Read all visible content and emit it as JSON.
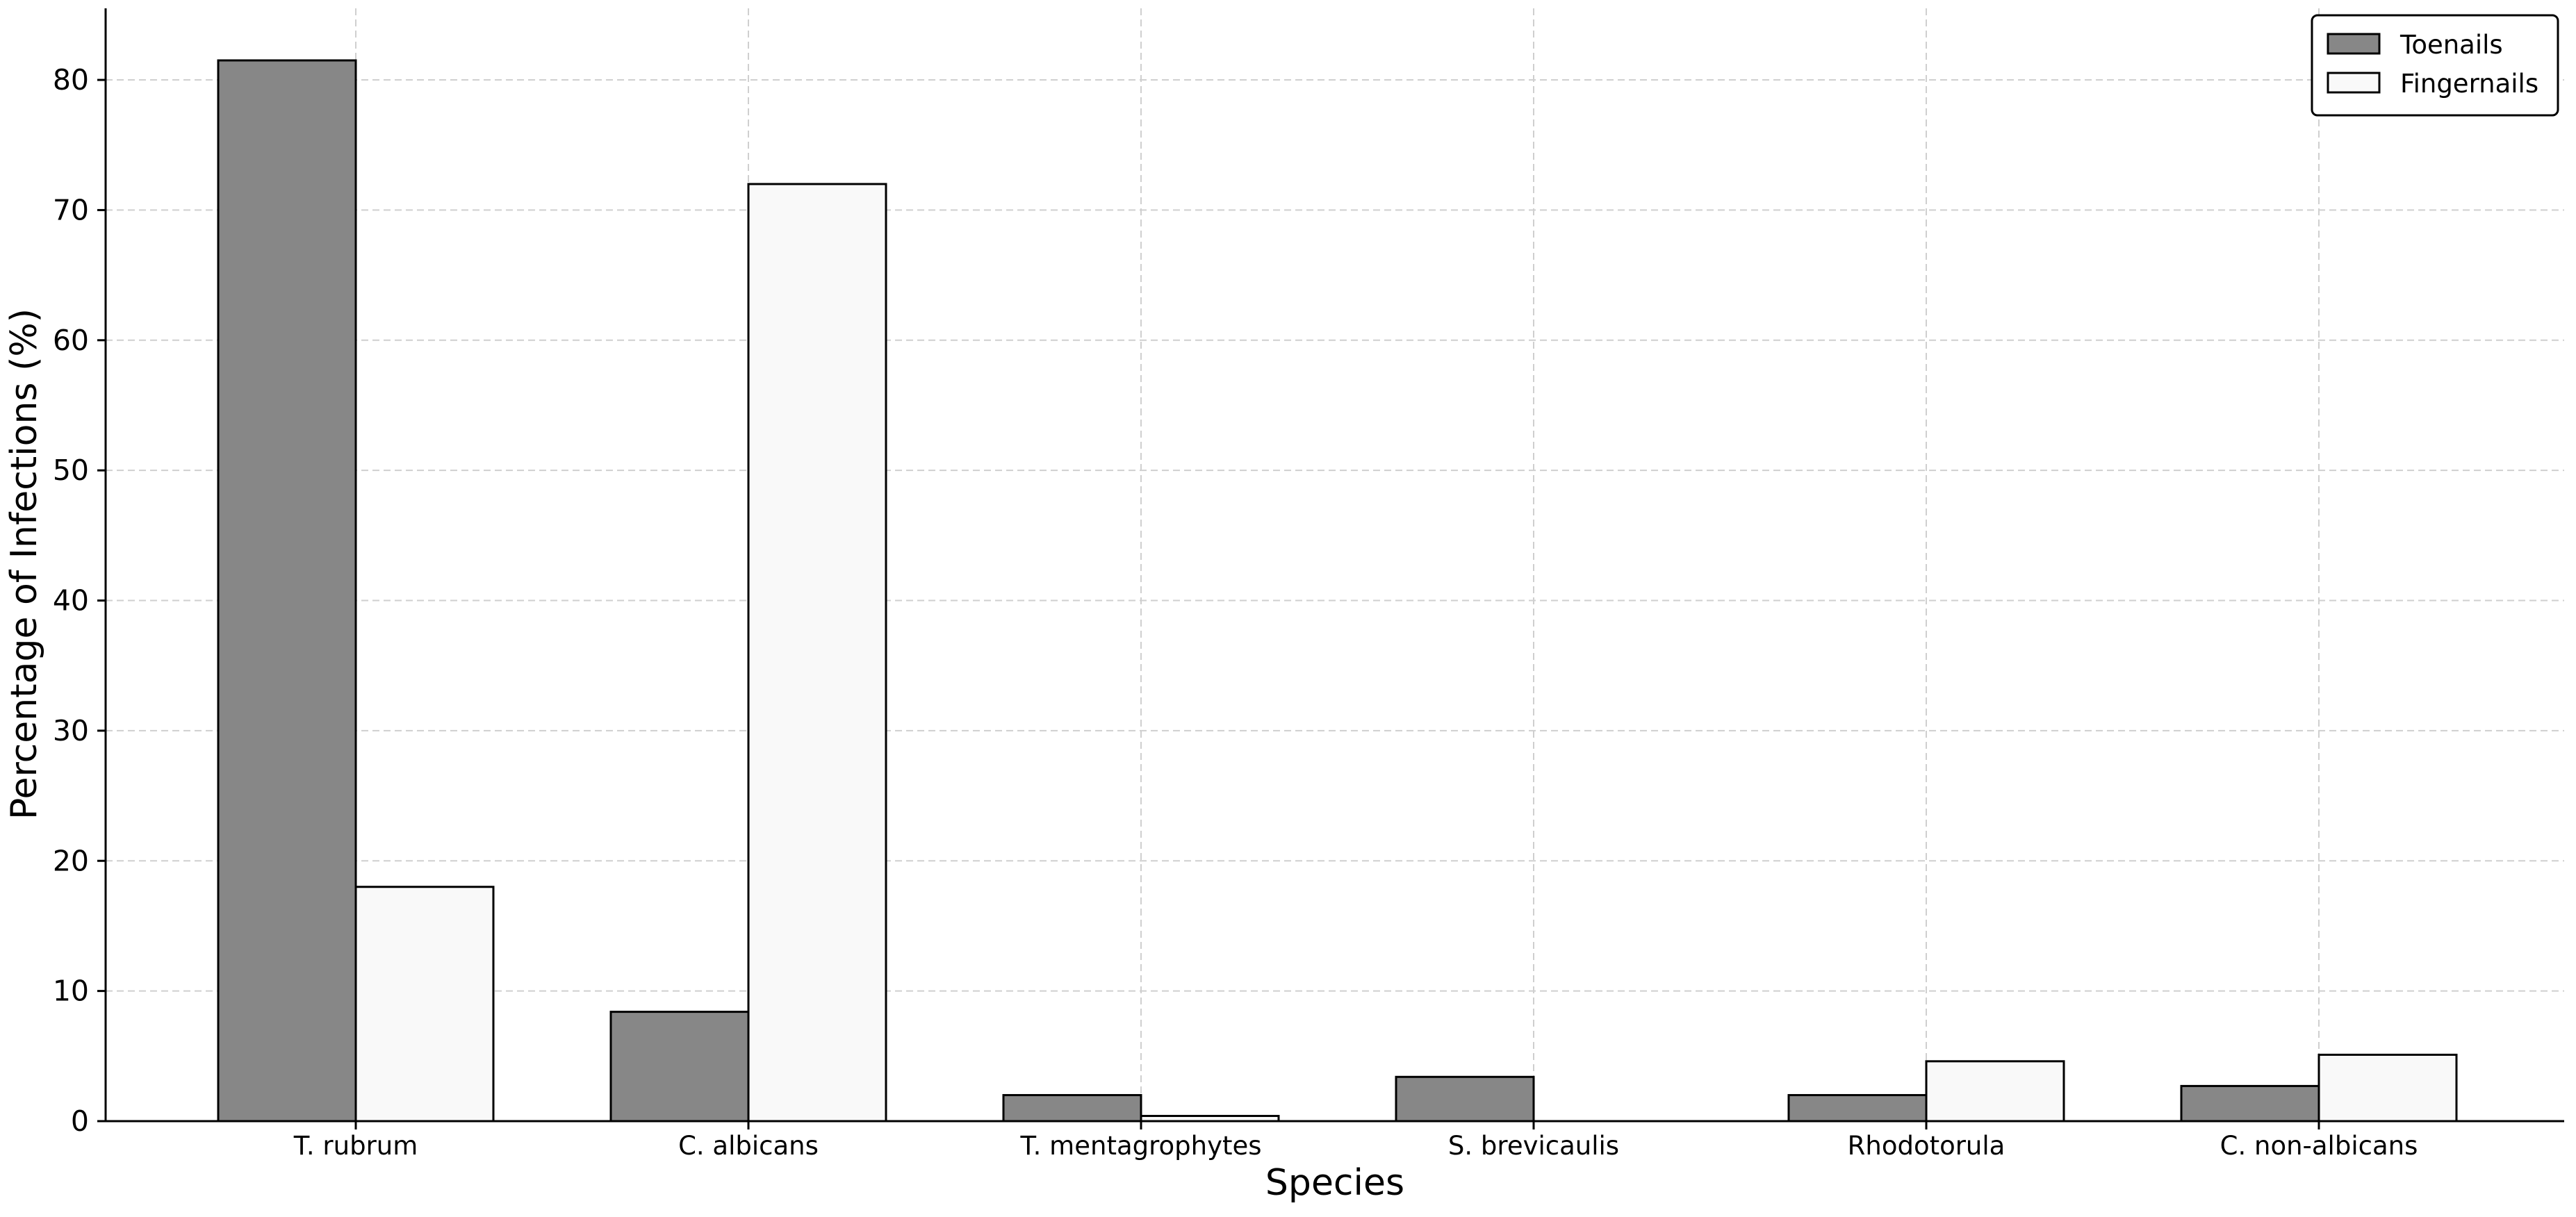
{
  "chart_data": {
    "type": "bar",
    "title": "",
    "xlabel": "Species",
    "ylabel": "Percentage of Infections (%)",
    "categories": [
      "T. rubrum",
      "C. albicans",
      "T. mentagrophytes",
      "S. brevicaulis",
      "Rhodotorula",
      "C. non-albicans"
    ],
    "series": [
      {
        "name": "Toenails",
        "values": [
          81.5,
          8.4,
          2.0,
          3.4,
          2.0,
          2.7
        ],
        "color": "#878787"
      },
      {
        "name": "Fingernails",
        "values": [
          18.0,
          72.0,
          0.4,
          0.0,
          4.6,
          5.1
        ],
        "color": "#f9f9f9"
      }
    ],
    "ylim": [
      0,
      85.5
    ],
    "yticks": [
      0,
      10,
      20,
      30,
      40,
      50,
      60,
      70,
      80
    ],
    "grid": true,
    "legend": "top-right"
  }
}
